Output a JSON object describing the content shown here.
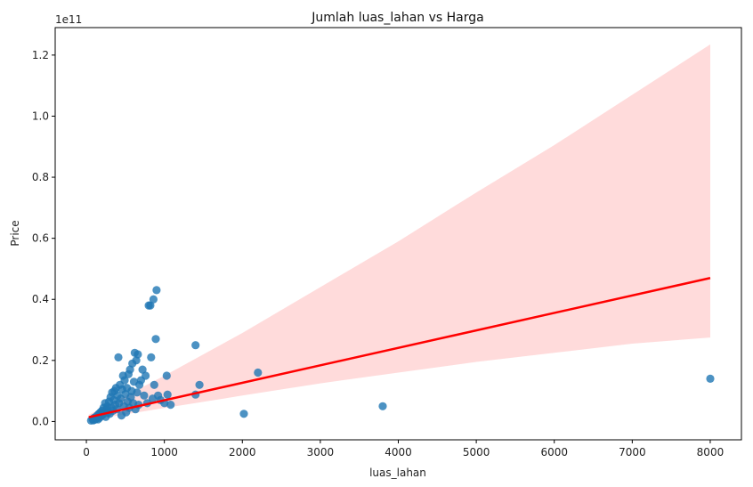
{
  "chart_data": {
    "type": "scatter",
    "title": "Jumlah luas_lahan vs Harga",
    "xlabel": "luas_lahan",
    "ylabel": "Price",
    "y_offset_text": "1e11",
    "y_scale_factor": 100000000000,
    "xlim": [
      -400,
      8400
    ],
    "ylim": [
      -0.06,
      1.29
    ],
    "x_ticks": [
      0,
      1000,
      2000,
      3000,
      4000,
      5000,
      6000,
      7000,
      8000
    ],
    "x_tick_labels": [
      "0",
      "1000",
      "2000",
      "3000",
      "4000",
      "5000",
      "6000",
      "7000",
      "8000"
    ],
    "y_ticks": [
      0.0,
      0.2,
      0.4,
      0.6,
      0.8,
      1.0,
      1.2
    ],
    "y_tick_labels": [
      "0.0",
      "0.2",
      "0.4",
      "0.6",
      "0.8",
      "1.0",
      "1.2"
    ],
    "grid": false,
    "colors": {
      "points": "#1f77b4",
      "regression_line": "#ff0000",
      "confidence_band": "#ffd7d7"
    },
    "points": [
      {
        "x": 60,
        "y": 0.003
      },
      {
        "x": 80,
        "y": 0.008
      },
      {
        "x": 90,
        "y": 0.004
      },
      {
        "x": 100,
        "y": 0.012
      },
      {
        "x": 110,
        "y": 0.006
      },
      {
        "x": 120,
        "y": 0.015
      },
      {
        "x": 130,
        "y": 0.01
      },
      {
        "x": 140,
        "y": 0.02
      },
      {
        "x": 150,
        "y": 0.007
      },
      {
        "x": 160,
        "y": 0.025
      },
      {
        "x": 170,
        "y": 0.012
      },
      {
        "x": 180,
        "y": 0.03
      },
      {
        "x": 190,
        "y": 0.018
      },
      {
        "x": 200,
        "y": 0.035
      },
      {
        "x": 210,
        "y": 0.022
      },
      {
        "x": 220,
        "y": 0.045
      },
      {
        "x": 230,
        "y": 0.028
      },
      {
        "x": 240,
        "y": 0.06
      },
      {
        "x": 250,
        "y": 0.015
      },
      {
        "x": 260,
        "y": 0.04
      },
      {
        "x": 270,
        "y": 0.05
      },
      {
        "x": 280,
        "y": 0.03
      },
      {
        "x": 290,
        "y": 0.065
      },
      {
        "x": 300,
        "y": 0.025
      },
      {
        "x": 310,
        "y": 0.08
      },
      {
        "x": 320,
        "y": 0.045
      },
      {
        "x": 330,
        "y": 0.095
      },
      {
        "x": 340,
        "y": 0.035
      },
      {
        "x": 350,
        "y": 0.07
      },
      {
        "x": 360,
        "y": 0.1
      },
      {
        "x": 370,
        "y": 0.055
      },
      {
        "x": 380,
        "y": 0.11
      },
      {
        "x": 390,
        "y": 0.04
      },
      {
        "x": 400,
        "y": 0.085
      },
      {
        "x": 410,
        "y": 0.21
      },
      {
        "x": 420,
        "y": 0.06
      },
      {
        "x": 430,
        "y": 0.12
      },
      {
        "x": 440,
        "y": 0.075
      },
      {
        "x": 450,
        "y": 0.02
      },
      {
        "x": 460,
        "y": 0.105
      },
      {
        "x": 470,
        "y": 0.15
      },
      {
        "x": 480,
        "y": 0.05
      },
      {
        "x": 490,
        "y": 0.135
      },
      {
        "x": 500,
        "y": 0.09
      },
      {
        "x": 510,
        "y": 0.03
      },
      {
        "x": 520,
        "y": 0.11
      },
      {
        "x": 530,
        "y": 0.065
      },
      {
        "x": 540,
        "y": 0.155
      },
      {
        "x": 550,
        "y": 0.045
      },
      {
        "x": 560,
        "y": 0.17
      },
      {
        "x": 570,
        "y": 0.08
      },
      {
        "x": 580,
        "y": 0.1
      },
      {
        "x": 590,
        "y": 0.19
      },
      {
        "x": 600,
        "y": 0.06
      },
      {
        "x": 610,
        "y": 0.13
      },
      {
        "x": 620,
        "y": 0.225
      },
      {
        "x": 630,
        "y": 0.04
      },
      {
        "x": 640,
        "y": 0.2
      },
      {
        "x": 650,
        "y": 0.095
      },
      {
        "x": 660,
        "y": 0.22
      },
      {
        "x": 670,
        "y": 0.055
      },
      {
        "x": 680,
        "y": 0.12
      },
      {
        "x": 700,
        "y": 0.135
      },
      {
        "x": 720,
        "y": 0.17
      },
      {
        "x": 740,
        "y": 0.085
      },
      {
        "x": 760,
        "y": 0.15
      },
      {
        "x": 780,
        "y": 0.06
      },
      {
        "x": 800,
        "y": 0.38
      },
      {
        "x": 820,
        "y": 0.38
      },
      {
        "x": 830,
        "y": 0.21
      },
      {
        "x": 850,
        "y": 0.075
      },
      {
        "x": 860,
        "y": 0.4
      },
      {
        "x": 870,
        "y": 0.12
      },
      {
        "x": 890,
        "y": 0.27
      },
      {
        "x": 900,
        "y": 0.43
      },
      {
        "x": 920,
        "y": 0.085
      },
      {
        "x": 950,
        "y": 0.07
      },
      {
        "x": 1000,
        "y": 0.06
      },
      {
        "x": 1030,
        "y": 0.15
      },
      {
        "x": 1040,
        "y": 0.088
      },
      {
        "x": 1080,
        "y": 0.055
      },
      {
        "x": 1400,
        "y": 0.25
      },
      {
        "x": 1400,
        "y": 0.088
      },
      {
        "x": 1450,
        "y": 0.12
      },
      {
        "x": 2200,
        "y": 0.16
      },
      {
        "x": 2020,
        "y": 0.025
      },
      {
        "x": 3800,
        "y": 0.05
      },
      {
        "x": 8000,
        "y": 0.14
      }
    ],
    "regression_line": {
      "x": [
        30,
        8000
      ],
      "y": [
        0.014,
        0.47
      ]
    },
    "confidence_band": {
      "x": [
        30,
        1000,
        2000,
        3000,
        4000,
        5000,
        6000,
        7000,
        8000
      ],
      "lower": [
        0.004,
        0.044,
        0.085,
        0.125,
        0.16,
        0.195,
        0.225,
        0.255,
        0.275
      ],
      "upper": [
        0.022,
        0.15,
        0.29,
        0.44,
        0.59,
        0.75,
        0.905,
        1.07,
        1.235
      ]
    }
  }
}
